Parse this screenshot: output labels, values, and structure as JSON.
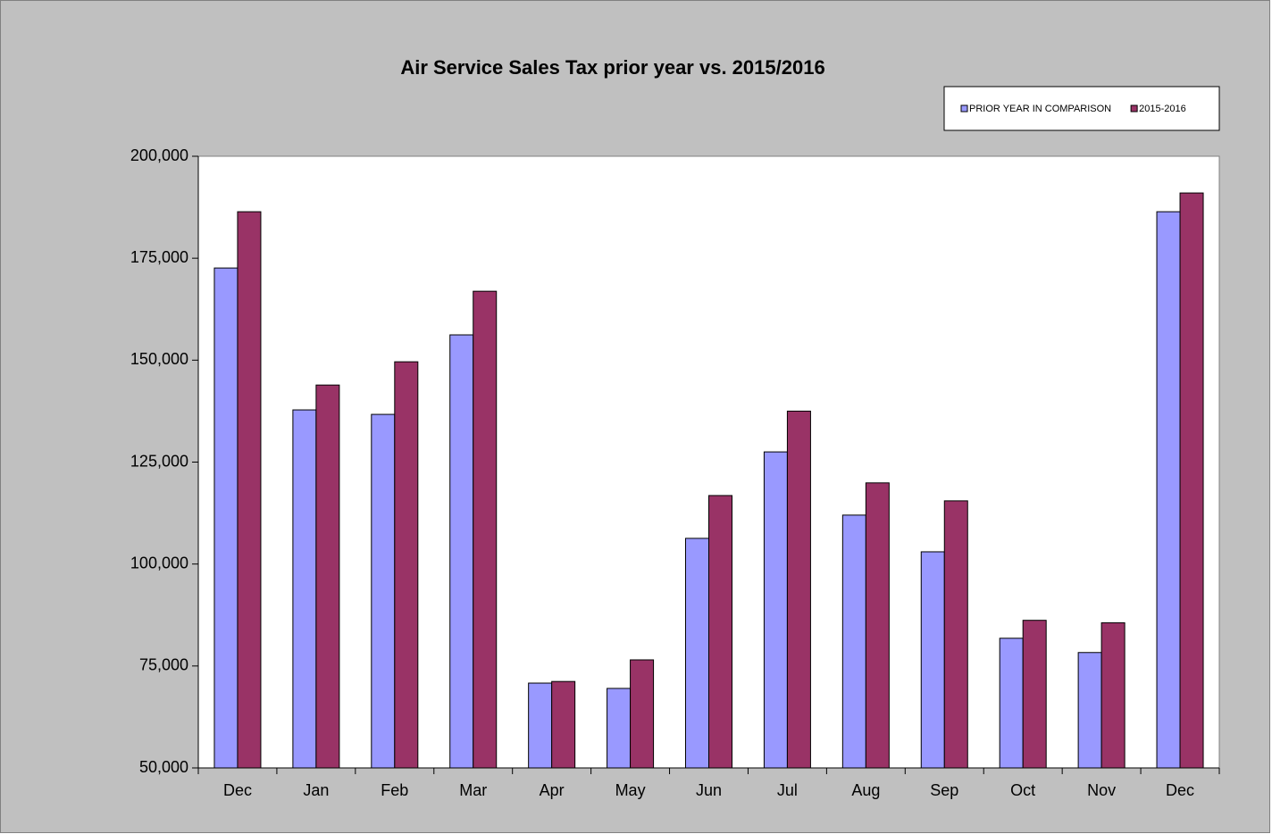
{
  "chart_data": {
    "type": "bar",
    "title": "Air Service Sales Tax prior year vs. 2015/2016",
    "categories": [
      "Dec",
      "Jan",
      "Feb",
      "Mar",
      "Apr",
      "May",
      "Jun",
      "Jul",
      "Aug",
      "Sep",
      "Oct",
      "Nov",
      "Dec"
    ],
    "series": [
      {
        "name": "PRIOR YEAR IN COMPARISON",
        "color": "#9999ff",
        "values": [
          172600,
          137800,
          136700,
          156200,
          70800,
          69500,
          106300,
          127500,
          112000,
          103000,
          81800,
          78300,
          186400
        ]
      },
      {
        "name": "2015-2016",
        "color": "#993366",
        "values": [
          186400,
          143900,
          149600,
          166900,
          71200,
          76500,
          116800,
          137500,
          119900,
          115500,
          86200,
          85600,
          191000
        ]
      }
    ],
    "ylim": [
      50000,
      200000
    ],
    "yticks": [
      {
        "value": 50000,
        "label": "50,000"
      },
      {
        "value": 75000,
        "label": "75,000"
      },
      {
        "value": 100000,
        "label": "100,000"
      },
      {
        "value": 125000,
        "label": "125,000"
      },
      {
        "value": 150000,
        "label": "150,000"
      },
      {
        "value": 175000,
        "label": "175,000"
      },
      {
        "value": 200000,
        "label": "200,000"
      }
    ],
    "legend": "top-right"
  }
}
